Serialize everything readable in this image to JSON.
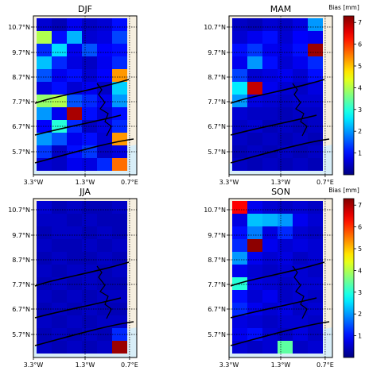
{
  "chart_data": {
    "type": "heatmap",
    "colorbar": {
      "label": "Bias [mm]",
      "colormap": "jet",
      "range": [
        0,
        7.3
      ],
      "ticks": [
        1,
        2,
        3,
        4,
        5,
        6,
        7
      ]
    },
    "x_ticks": [
      "3.3°W",
      "1.3°W",
      "0.7°E"
    ],
    "y_ticks": [
      "10.7°N",
      "9.7°N",
      "8.7°N",
      "7.7°N",
      "6.7°N",
      "5.7°N"
    ],
    "panels": [
      {
        "title": "DJF",
        "rows": [
          [
            0.6,
            0.4,
            0.8,
            0.5,
            0.6,
            1.0
          ],
          [
            4.0,
            1.0,
            2.2,
            0.6,
            0.7,
            1.4
          ],
          [
            1.2,
            2.5,
            0.8,
            1.5,
            0.9,
            1.0
          ],
          [
            2.3,
            1.2,
            0.7,
            0.5,
            0.8,
            1.2
          ],
          [
            1.5,
            0.8,
            1.0,
            0.6,
            0.9,
            5.3
          ],
          [
            0.7,
            1.0,
            0.6,
            0.8,
            0.5,
            2.4
          ],
          [
            3.8,
            4.0,
            1.5,
            1.2,
            0.8,
            2.0
          ],
          [
            2.0,
            0.8,
            7.0,
            1.0,
            0.6,
            1.0
          ],
          [
            0.9,
            3.0,
            1.2,
            0.5,
            0.7,
            1.2
          ],
          [
            2.0,
            1.5,
            0.8,
            1.0,
            0.6,
            5.3
          ],
          [
            1.3,
            0.5,
            1.0,
            1.3,
            0.5,
            0.7
          ],
          [
            0.6,
            0.5,
            0.8,
            0.7,
            1.2,
            5.6
          ]
        ]
      },
      {
        "title": "MAM",
        "rows": [
          [
            0.5,
            0.4,
            0.6,
            0.5,
            0.7,
            2.0
          ],
          [
            0.6,
            0.8,
            1.0,
            0.6,
            0.9,
            0.8
          ],
          [
            1.0,
            1.3,
            0.8,
            0.7,
            1.0,
            7.1
          ],
          [
            0.8,
            2.0,
            1.0,
            0.6,
            0.8,
            1.2
          ],
          [
            1.4,
            0.6,
            0.7,
            0.8,
            0.6,
            1.0
          ],
          [
            2.6,
            6.8,
            0.8,
            0.6,
            0.5,
            0.7
          ],
          [
            2.0,
            0.7,
            0.6,
            0.5,
            0.6,
            0.6
          ],
          [
            0.6,
            0.5,
            0.5,
            0.4,
            0.5,
            0.5
          ],
          [
            0.5,
            0.6,
            0.4,
            0.5,
            0.4,
            0.5
          ],
          [
            0.5,
            0.4,
            0.5,
            0.4,
            0.5,
            0.4
          ],
          [
            0.4,
            0.5,
            0.4,
            0.5,
            0.4,
            0.5
          ],
          [
            0.5,
            0.4,
            0.5,
            0.4,
            0.5,
            0.4
          ]
        ]
      },
      {
        "title": "JJA",
        "rows": [
          [
            0.6,
            0.4,
            0.5,
            0.4,
            0.4,
            0.5
          ],
          [
            0.5,
            0.5,
            0.4,
            0.5,
            0.4,
            0.4
          ],
          [
            0.4,
            0.5,
            0.5,
            0.4,
            0.5,
            0.4
          ],
          [
            0.5,
            0.4,
            0.4,
            0.5,
            0.4,
            0.5
          ],
          [
            0.4,
            0.5,
            0.4,
            0.4,
            0.5,
            0.4
          ],
          [
            0.5,
            0.4,
            0.5,
            0.5,
            0.4,
            0.5
          ],
          [
            0.4,
            0.5,
            0.4,
            0.5,
            0.4,
            0.4
          ],
          [
            0.5,
            0.4,
            0.5,
            0.4,
            0.5,
            0.5
          ],
          [
            0.4,
            0.5,
            0.4,
            0.5,
            0.4,
            0.4
          ],
          [
            0.5,
            0.4,
            0.5,
            0.4,
            0.5,
            0.5
          ],
          [
            0.4,
            0.5,
            0.4,
            0.5,
            0.4,
            1.2
          ],
          [
            0.5,
            0.4,
            0.5,
            0.4,
            0.5,
            7.1
          ]
        ]
      },
      {
        "title": "SON",
        "rows": [
          [
            6.4,
            0.8,
            0.6,
            0.5,
            0.6,
            0.5
          ],
          [
            0.7,
            2.3,
            2.2,
            2.0,
            0.8,
            0.6
          ],
          [
            1.0,
            1.8,
            0.7,
            1.2,
            0.6,
            0.5
          ],
          [
            1.2,
            7.2,
            0.8,
            0.6,
            0.7,
            0.6
          ],
          [
            2.0,
            0.8,
            0.6,
            0.7,
            0.5,
            0.6
          ],
          [
            0.8,
            0.6,
            0.5,
            0.6,
            0.6,
            0.5
          ],
          [
            3.0,
            0.7,
            0.6,
            0.5,
            0.6,
            0.6
          ],
          [
            1.0,
            0.6,
            0.8,
            0.5,
            0.6,
            0.5
          ],
          [
            1.2,
            0.8,
            0.6,
            0.7,
            0.5,
            0.6
          ],
          [
            0.7,
            0.6,
            0.5,
            0.6,
            0.6,
            0.5
          ],
          [
            0.8,
            1.0,
            0.6,
            0.5,
            0.7,
            0.5
          ],
          [
            0.6,
            0.5,
            0.6,
            3.4,
            0.5,
            0.6
          ]
        ]
      }
    ]
  }
}
